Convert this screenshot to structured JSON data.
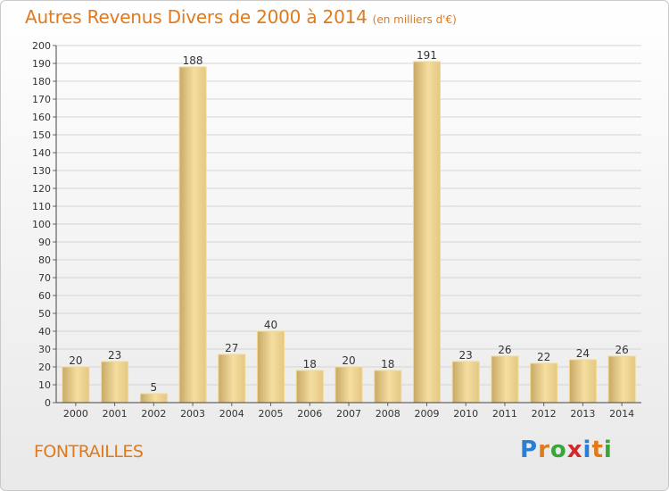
{
  "header": {
    "title": "Autres Revenus Divers de 2000 à 2014",
    "subtitle": "(en milliers d'€)"
  },
  "footer": {
    "commune": "FONTRAILLES",
    "brand": {
      "letters": [
        "P",
        "r",
        "o",
        "x",
        "i",
        "t",
        "i"
      ],
      "colors": [
        "#2a7fd4",
        "#e07a1c",
        "#3aa53a",
        "#d12a2a",
        "#2a7fd4",
        "#e07a1c",
        "#3aa53a"
      ]
    }
  },
  "colors": {
    "bar_light": "#f5dea0",
    "bar_dark": "#c8a966",
    "accent": "#e07a1c",
    "grid": "#d4d4d4"
  },
  "chart_data": {
    "type": "bar",
    "title": "Autres Revenus Divers de 2000 à 2014",
    "subtitle": "(en milliers d'€)",
    "categories": [
      "2000",
      "2001",
      "2002",
      "2003",
      "2004",
      "2005",
      "2006",
      "2007",
      "2008",
      "2009",
      "2010",
      "2011",
      "2012",
      "2013",
      "2014"
    ],
    "values": [
      20,
      23,
      5,
      188,
      27,
      40,
      18,
      20,
      18,
      191,
      23,
      26,
      22,
      24,
      26
    ],
    "data_labels": [
      "20",
      "23",
      "5",
      "188",
      "27",
      "40",
      "18",
      "20",
      "18",
      "191",
      "23",
      "26",
      "22",
      "24",
      "26"
    ],
    "ylim": [
      0,
      200
    ],
    "yticks": [
      "0",
      "10",
      "20",
      "30",
      "40",
      "50",
      "60",
      "70",
      "80",
      "90",
      "100",
      "110",
      "120",
      "130",
      "140",
      "150",
      "160",
      "170",
      "180",
      "190",
      "200"
    ],
    "xlabel": "",
    "ylabel": "",
    "grid": true,
    "legend": "none"
  }
}
